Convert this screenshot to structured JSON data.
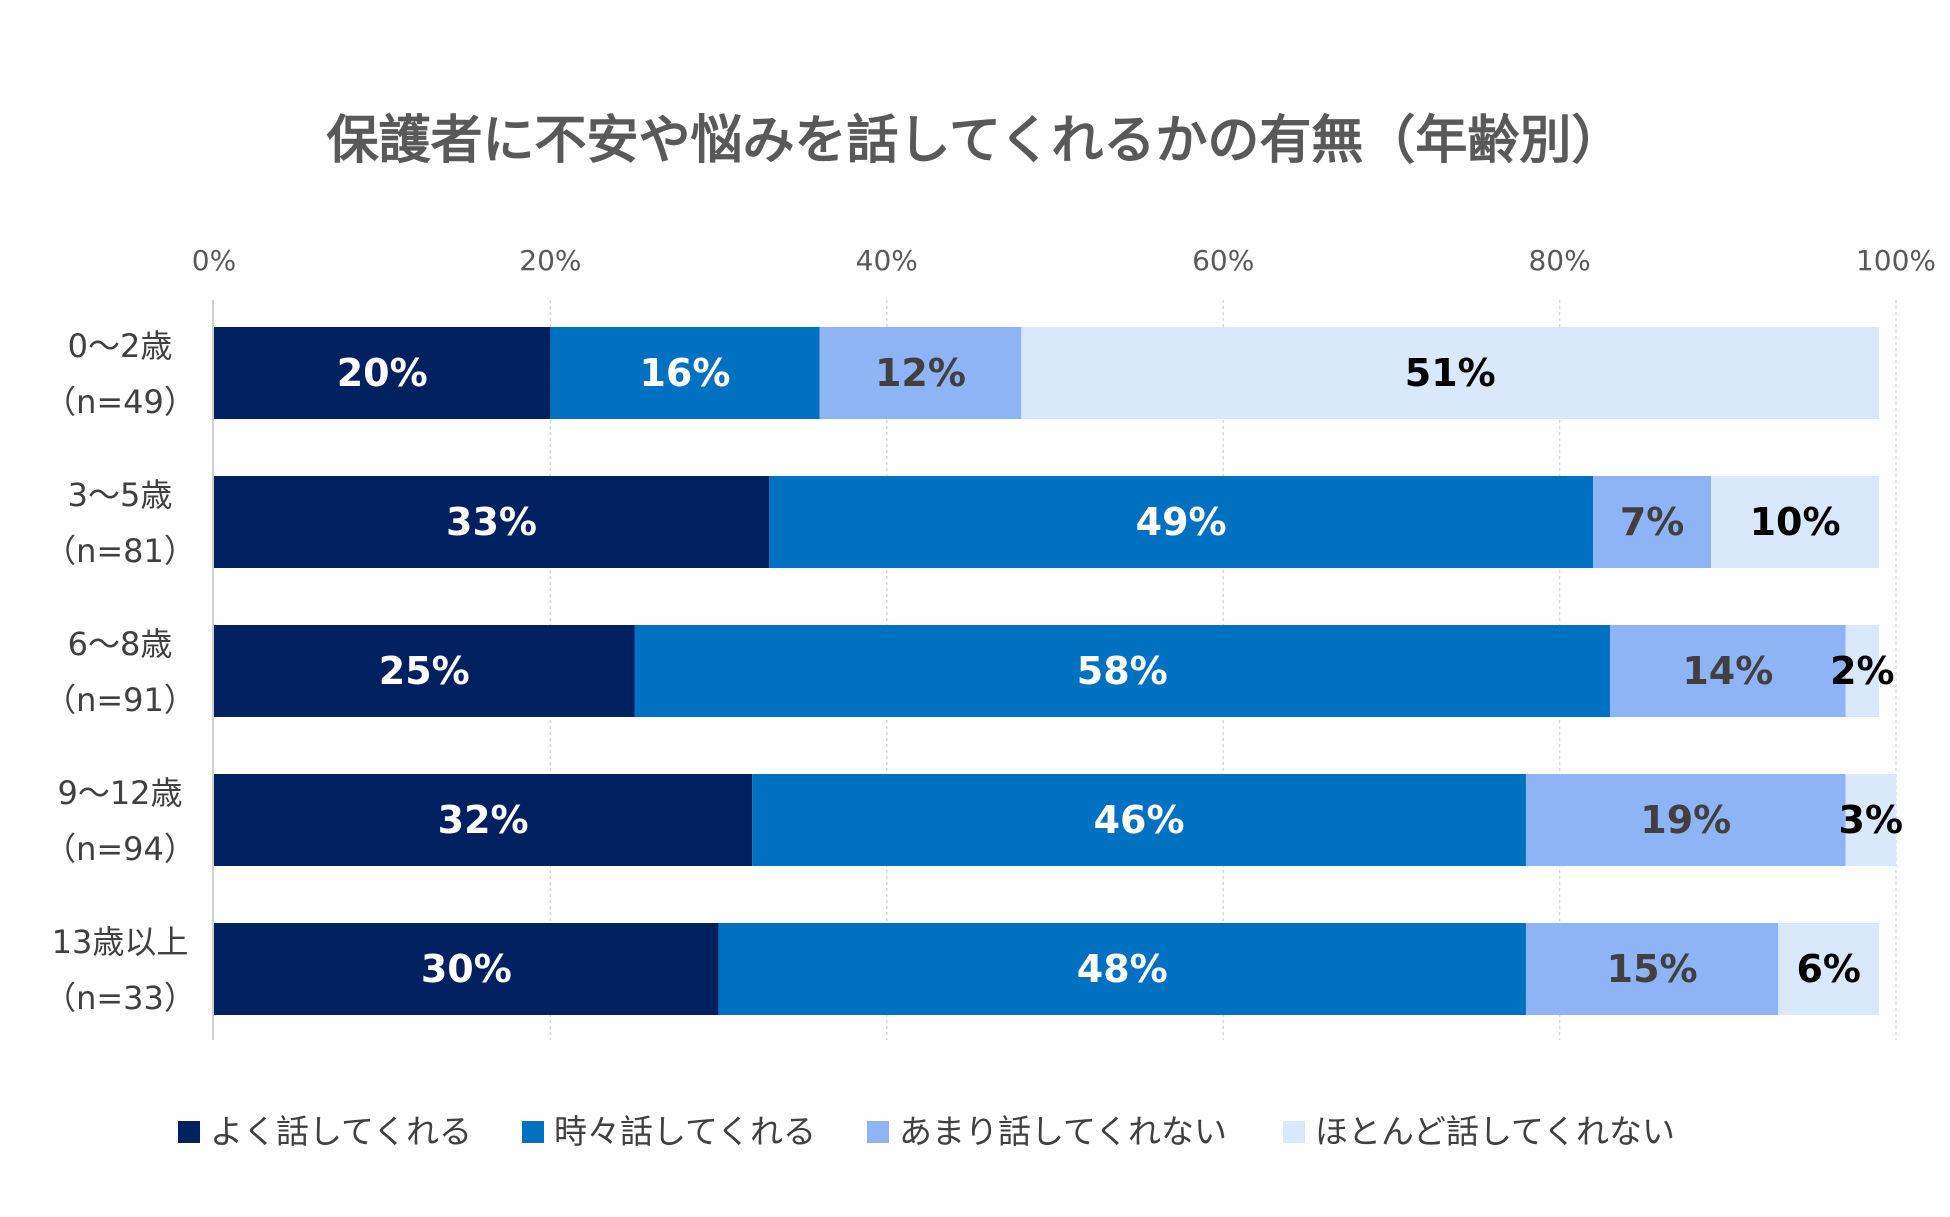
{
  "chart_data": {
    "type": "bar",
    "orientation": "horizontal",
    "stacked": true,
    "title": "保護者に不安や悩みを話してくれるかの有無（年齢別）",
    "xlim": [
      0,
      100
    ],
    "x_ticks": [
      "0%",
      "20%",
      "40%",
      "60%",
      "80%",
      "100%"
    ],
    "categories": [
      [
        "0〜2歳",
        "（n=49）"
      ],
      [
        "3〜5歳",
        "（n=81）"
      ],
      [
        "6〜8歳",
        "（n=91）"
      ],
      [
        "9〜12歳",
        "（n=94）"
      ],
      [
        "13歳以上",
        "（n=33）"
      ]
    ],
    "series": [
      {
        "name": "よく話してくれる",
        "color": "#002060",
        "label_color": "#ffffff",
        "values": [
          20,
          33,
          25,
          32,
          30
        ]
      },
      {
        "name": "時々話してくれる",
        "color": "#0070C0",
        "label_color": "#ffffff",
        "values": [
          16,
          49,
          58,
          46,
          48
        ]
      },
      {
        "name": "あまり話してくれない",
        "color": "#8FB4F5",
        "label_color": "#404040",
        "values": [
          12,
          7,
          14,
          19,
          15
        ]
      },
      {
        "name": "ほとんど話してくれない",
        "color": "#DAE8FC",
        "label_color": "#000000",
        "values": [
          51,
          10,
          2,
          3,
          6
        ]
      }
    ],
    "data_labels": [
      [
        "20%",
        "33%",
        "25%",
        "32%",
        "30%"
      ],
      [
        "16%",
        "49%",
        "58%",
        "46%",
        "48%"
      ],
      [
        "12%",
        "7%",
        "14%",
        "19%",
        "15%"
      ],
      [
        "51%",
        "10%",
        "2%",
        "3%",
        "6%"
      ]
    ],
    "legend_position": "bottom",
    "grid": true
  }
}
